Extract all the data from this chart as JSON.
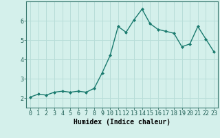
{
  "title": "",
  "xlabel": "Humidex (Indice chaleur)",
  "x": [
    0,
    1,
    2,
    3,
    4,
    5,
    6,
    7,
    8,
    9,
    10,
    11,
    12,
    13,
    14,
    15,
    16,
    17,
    18,
    19,
    20,
    21,
    22,
    23
  ],
  "y": [
    2.05,
    2.2,
    2.15,
    2.3,
    2.35,
    2.3,
    2.35,
    2.3,
    2.5,
    3.3,
    4.2,
    5.7,
    5.4,
    6.05,
    6.6,
    5.85,
    5.55,
    5.45,
    5.35,
    4.65,
    4.8,
    5.7,
    5.05,
    4.4
  ],
  "line_color": "#1a7a6e",
  "marker": "D",
  "marker_size": 2.0,
  "line_width": 1.0,
  "bg_color": "#d4f0eb",
  "grid_color": "#b8ddd8",
  "axis_label_color": "#000000",
  "ylim": [
    1.5,
    7.0
  ],
  "xlim": [
    -0.5,
    23.5
  ],
  "yticks": [
    2,
    3,
    4,
    5,
    6
  ],
  "xticks": [
    0,
    1,
    2,
    3,
    4,
    5,
    6,
    7,
    8,
    9,
    10,
    11,
    12,
    13,
    14,
    15,
    16,
    17,
    18,
    19,
    20,
    21,
    22,
    23
  ],
  "xlabel_fontsize": 7.0,
  "tick_fontsize": 6.0
}
